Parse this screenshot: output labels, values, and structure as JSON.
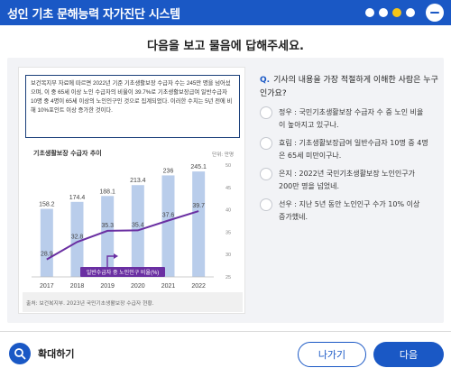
{
  "header": {
    "title": "성인 기초 문해능력 자가진단 시스템",
    "dots": [
      {
        "name": "dot-1",
        "color": "#ffffff"
      },
      {
        "name": "dot-2",
        "color": "#ffffff"
      },
      {
        "name": "dot-3",
        "color": "#f5c518"
      },
      {
        "name": "dot-4",
        "color": "#ffffff"
      }
    ],
    "accent": "#1a58c5"
  },
  "instruction": "다음을 보고 물음에 답해주세요.",
  "passage": {
    "text": "보건복지부 자료에 따르면 2022년 기준 기초생활보장 수급자 수는 245만 명을 넘어섰으며, 이 중 65세 이상 노인 수급자의 비율이 39.7%로 기초생활보장급여 일반수급자 10명 중 4명이 65세 이상의 노인인구인 것으로 집계되었다. 이러한 수치는 5년 전에 비해 10%포인트 이상 증가한 것이다."
  },
  "chart": {
    "title": "기초생활보장 수급자 추이",
    "unit": "단위: 만명",
    "source": "출처: 보건복지부. 2023년 국민기초생활보장 수급자 현황.",
    "callout": "일반수급자 중 노인인구 비율(%)"
  },
  "chart_data": {
    "type": "bar",
    "categories": [
      "2017",
      "2018",
      "2019",
      "2020",
      "2021",
      "2022"
    ],
    "series": [
      {
        "values": [
          158.2,
          174.4,
          188.1,
          213.4,
          236,
          245.1
        ],
        "color": "#b9cdeb"
      },
      {
        "values": [
          28.9,
          32.8,
          35.3,
          35.4,
          37.6,
          39.7
        ],
        "color": "#6a2fa2"
      }
    ],
    "right_axis_ticks": [
      25,
      30,
      35,
      40,
      45,
      50
    ],
    "right_ylim": [
      25,
      50
    ]
  },
  "question": {
    "marker": "Q.",
    "text": "기사의 내용을 가장 적절하게 이해한 사람은 누구인가요?"
  },
  "options": [
    {
      "text": "정우 : 국민기초생활보장 수급자 수 중 노인 비율이 높아지고 있구나."
    },
    {
      "text": "효림 : 기초생활보장급여 일반수급자 10명 중 4명은 65세 미만이구나."
    },
    {
      "text": "은지 : 2022년 국민기초생활보장 노인인구가 200만 명을 넘었네."
    },
    {
      "text": "선우 : 지난 5년 동안 노인인구 수가 10% 이상 증가했네."
    }
  ],
  "footer": {
    "zoom_label": "확대하기",
    "prev_label": "나가기",
    "next_label": "다음"
  }
}
